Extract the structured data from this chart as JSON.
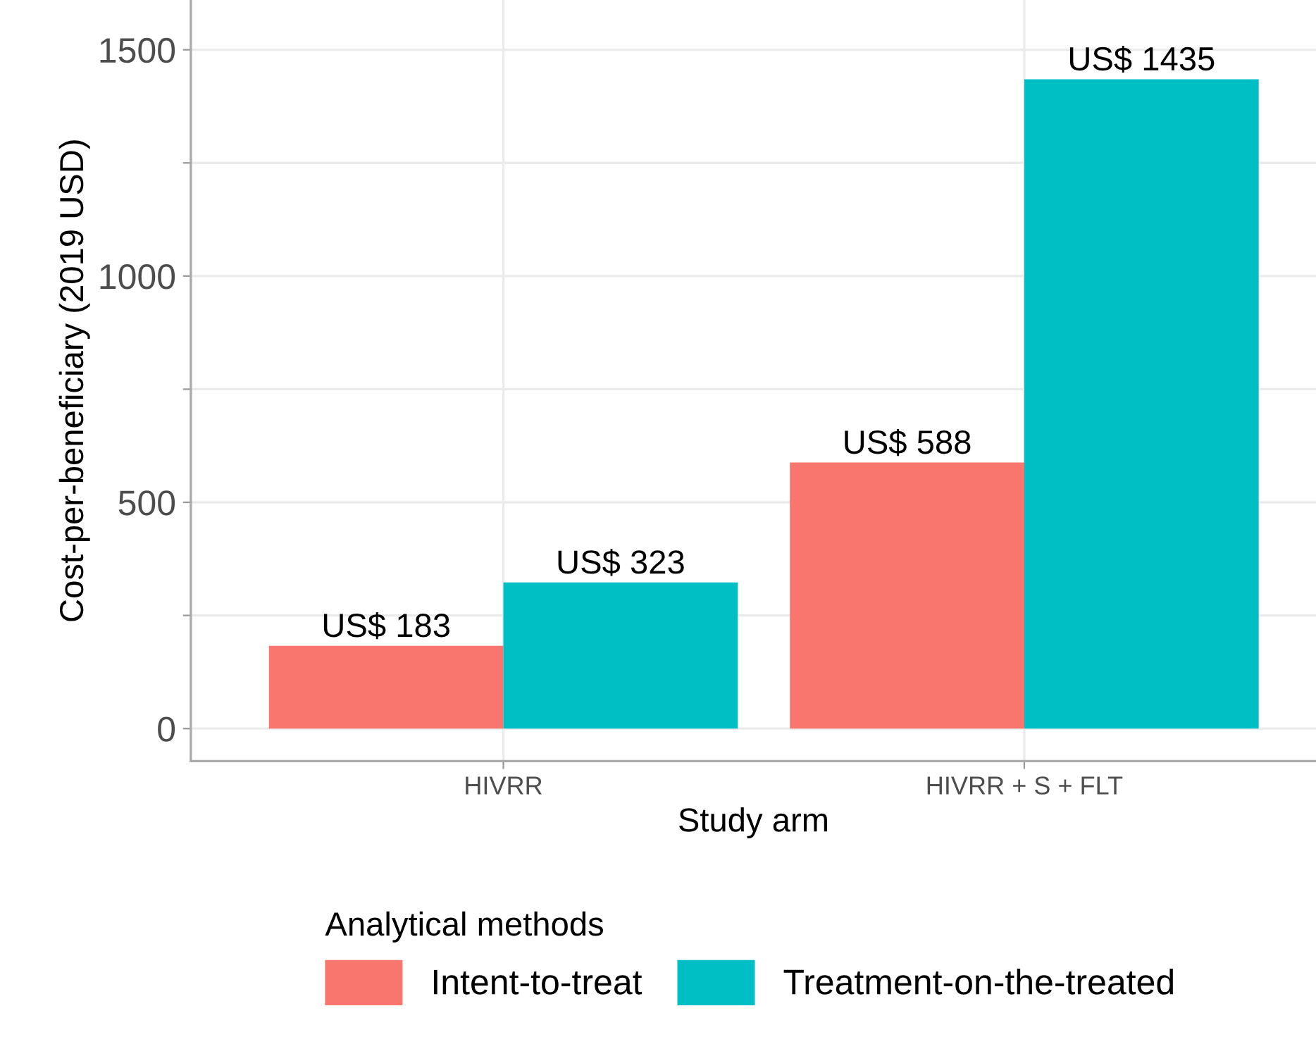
{
  "chart_data": {
    "type": "bar",
    "xlabel": "Study arm",
    "ylabel": "Cost-per-beneficiary (2019 USD)",
    "legend_title": "Analytical methods",
    "categories": [
      "HIVRR",
      "HIVRR + S + FLT"
    ],
    "series": [
      {
        "name": "Intent-to-treat",
        "color": "#f8766d",
        "values": [
          183,
          588
        ],
        "value_labels": [
          "US$ 183",
          "US$ 588"
        ]
      },
      {
        "name": "Treatment-on-the-treated",
        "color": "#00bfc4",
        "values": [
          323,
          1435
        ],
        "value_labels": [
          "US$ 323",
          "US$ 1435"
        ]
      }
    ],
    "ylim": [
      -72,
      1610
    ],
    "yticks": [
      0,
      {
        "value": 250,
        "label": null
      },
      500,
      {
        "value": 750,
        "label": null
      },
      1000,
      {
        "value": 1250,
        "label": null
      },
      1500
    ],
    "grid": true,
    "legend": "bottom"
  }
}
